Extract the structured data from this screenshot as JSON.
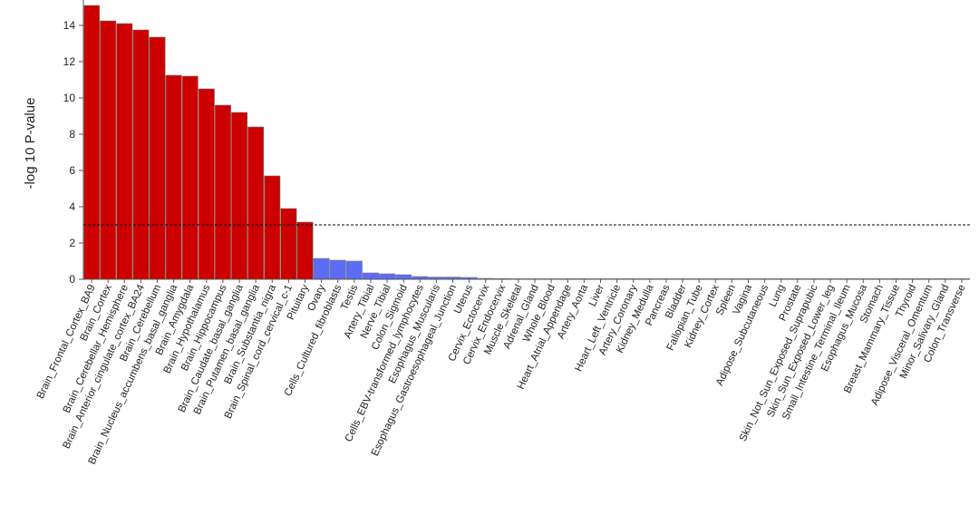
{
  "chart_data": {
    "type": "bar",
    "title": "",
    "xlabel": "",
    "ylabel": "-log 10 P-value",
    "ylim": [
      0,
      15
    ],
    "yticks": [
      0,
      2,
      4,
      6,
      8,
      10,
      12,
      14
    ],
    "threshold": 3.0,
    "significant_color": "#CC0000",
    "nonsignificant_color": "#5C6CF5",
    "categories": [
      "Brain_Frontal_Cortex_BA9",
      "Brain_Cortex",
      "Brain_Cerebellar_Hemisphere",
      "Brain_Anterior_cingulate_cortex_BA24",
      "Brain_Cerebellum",
      "Brain_Nucleus_accumbens_basal_ganglia",
      "Brain_Amygdala",
      "Brain_Hypothalamus",
      "Brain_Hippocampus",
      "Brain_Caudate_basal_ganglia",
      "Brain_Putamen_basal_ganglia",
      "Brain_Substantia_nigra",
      "Brain_Spinal_cord_cervical_c-1",
      "Pituitary",
      "Ovary",
      "Cells_Cultured_fibroblasts",
      "Testis",
      "Artery_Tibial",
      "Nerve_Tibial",
      "Colon_Sigmoid",
      "Cells_EBV-transformed_lymphocytes",
      "Esophagus_Muscularis",
      "Esophagus_Gastroesophageal_Junction",
      "Uterus",
      "Cervix_Ectocervix",
      "Cervix_Endocervix",
      "Muscle_Skeletal",
      "Adrenal_Gland",
      "Whole_Blood",
      "Heart_Atrial_Appendage",
      "Artery_Aorta",
      "Liver",
      "Heart_Left_Ventricle",
      "Artery_Coronary",
      "Kidney_Medulla",
      "Pancreas",
      "Bladder",
      "Fallopian_Tube",
      "Kidney_Cortex",
      "Spleen",
      "Vagina",
      "Adipose_Subcutaneous",
      "Lung",
      "Prostate",
      "Skin_Not_Sun_Exposed_Suprapubic",
      "Skin_Sun_Exposed_Lower_leg",
      "Small_Intestine_Terminal_Ileum",
      "Esophagus_Mucosa",
      "Stomach",
      "Breast_Mammary_Tissue",
      "Thyroid",
      "Adipose_Visceral_Omentum",
      "Minor_Salivary_Gland",
      "Colon_Transverse"
    ],
    "values": [
      15.1,
      14.25,
      14.1,
      13.75,
      13.35,
      11.25,
      11.2,
      10.5,
      9.6,
      9.2,
      8.4,
      5.7,
      3.9,
      3.15,
      1.15,
      1.05,
      1.0,
      0.35,
      0.3,
      0.25,
      0.15,
      0.12,
      0.12,
      0.1,
      0.05,
      0.04,
      0.03,
      0.02,
      0.02,
      0.02,
      0.01,
      0.01,
      0.01,
      0.01,
      0.01,
      0.01,
      0.01,
      0.01,
      0.01,
      0.01,
      0.01,
      0.01,
      0.01,
      0.01,
      0.01,
      0.01,
      0.01,
      0.01,
      0.01,
      0.01,
      0.01,
      0.01,
      0.01,
      0.01
    ]
  }
}
